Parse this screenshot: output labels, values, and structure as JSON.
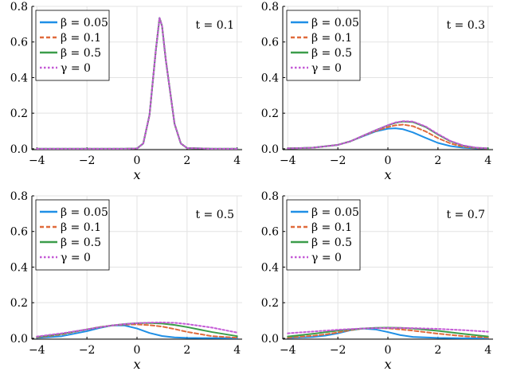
{
  "chart_data": [
    {
      "type": "line",
      "time_label": "t = 0.1",
      "xlabel": "x",
      "ylabel": "",
      "xlim": [
        -4.2,
        4.2
      ],
      "ylim": [
        -0.005,
        0.8
      ],
      "xticks": [
        -4,
        -2,
        0,
        2,
        4
      ],
      "yticks": [
        0.0,
        0.2,
        0.4,
        0.6,
        0.8
      ],
      "xtick_labels": [
        "−4",
        "−2",
        "0",
        "2",
        "4"
      ],
      "ytick_labels": [
        "0.0",
        "0.2",
        "0.4",
        "0.6",
        "0.8"
      ],
      "grid": true,
      "legend_placement": "top-left",
      "x": [
        -4,
        -3,
        -2,
        -1,
        -0.5,
        0,
        0.25,
        0.5,
        0.75,
        0.9,
        1.0,
        1.15,
        1.5,
        1.75,
        2,
        3,
        4
      ],
      "series": [
        {
          "name": "β = 0.05",
          "color": "#1f8fe6",
          "dash": "solid",
          "values": [
            0,
            0,
            0,
            0,
            0,
            0.002,
            0.03,
            0.19,
            0.55,
            0.735,
            0.69,
            0.5,
            0.14,
            0.03,
            0.004,
            0,
            0
          ]
        },
        {
          "name": "β = 0.1",
          "color": "#e06a3b",
          "dash": "dashed",
          "values": [
            0,
            0,
            0,
            0,
            0,
            0.002,
            0.03,
            0.19,
            0.55,
            0.735,
            0.69,
            0.5,
            0.14,
            0.03,
            0.004,
            0,
            0
          ]
        },
        {
          "name": "β = 0.5",
          "color": "#3b9d4a",
          "dash": "solid",
          "values": [
            0,
            0,
            0,
            0,
            0,
            0.002,
            0.03,
            0.19,
            0.55,
            0.735,
            0.69,
            0.5,
            0.14,
            0.03,
            0.004,
            0,
            0
          ]
        },
        {
          "name": "γ = 0",
          "color": "#c45ad6",
          "dash": "dotted",
          "values": [
            0,
            0,
            0,
            0,
            0,
            0.002,
            0.03,
            0.19,
            0.55,
            0.735,
            0.69,
            0.5,
            0.14,
            0.03,
            0.004,
            0,
            0
          ]
        }
      ]
    },
    {
      "type": "line",
      "time_label": "t = 0.3",
      "xlabel": "x",
      "ylabel": "",
      "xlim": [
        -4.2,
        4.2
      ],
      "ylim": [
        -0.005,
        0.8
      ],
      "xticks": [
        -4,
        -2,
        0,
        2,
        4
      ],
      "yticks": [
        0.0,
        0.2,
        0.4,
        0.6,
        0.8
      ],
      "xtick_labels": [
        "−4",
        "−2",
        "0",
        "2",
        "4"
      ],
      "ytick_labels": [
        "0.0",
        "0.2",
        "0.4",
        "0.6",
        "0.8"
      ],
      "grid": true,
      "legend_placement": "top-left",
      "x": [
        -4,
        -3,
        -2,
        -1.5,
        -1,
        -0.5,
        0,
        0.3,
        0.6,
        1,
        1.5,
        2,
        2.5,
        3,
        3.5,
        4
      ],
      "series": [
        {
          "name": "β = 0.05",
          "color": "#1f8fe6",
          "dash": "solid",
          "values": [
            0.002,
            0.006,
            0.022,
            0.042,
            0.07,
            0.097,
            0.113,
            0.115,
            0.11,
            0.092,
            0.062,
            0.033,
            0.015,
            0.006,
            0.002,
            0.001
          ]
        },
        {
          "name": "β = 0.1",
          "color": "#e06a3b",
          "dash": "dashed",
          "values": [
            0.002,
            0.006,
            0.022,
            0.042,
            0.072,
            0.1,
            0.122,
            0.132,
            0.136,
            0.127,
            0.098,
            0.06,
            0.03,
            0.012,
            0.004,
            0.001
          ]
        },
        {
          "name": "β = 0.5",
          "color": "#3b9d4a",
          "dash": "solid",
          "values": [
            0.002,
            0.006,
            0.022,
            0.042,
            0.073,
            0.104,
            0.132,
            0.146,
            0.153,
            0.15,
            0.123,
            0.08,
            0.042,
            0.018,
            0.006,
            0.002
          ]
        },
        {
          "name": "γ = 0",
          "color": "#c45ad6",
          "dash": "dotted",
          "values": [
            0.002,
            0.006,
            0.022,
            0.042,
            0.073,
            0.104,
            0.133,
            0.148,
            0.155,
            0.153,
            0.126,
            0.083,
            0.044,
            0.019,
            0.007,
            0.002
          ]
        }
      ]
    },
    {
      "type": "line",
      "time_label": "t = 0.5",
      "xlabel": "x",
      "ylabel": "",
      "xlim": [
        -4.2,
        4.2
      ],
      "ylim": [
        -0.005,
        0.8
      ],
      "xticks": [
        -4,
        -2,
        0,
        2,
        4
      ],
      "yticks": [
        0.0,
        0.2,
        0.4,
        0.6,
        0.8
      ],
      "xtick_labels": [
        "−4",
        "−2",
        "0",
        "2",
        "4"
      ],
      "ytick_labels": [
        "0.0",
        "0.2",
        "0.4",
        "0.6",
        "0.8"
      ],
      "grid": true,
      "legend_placement": "top-left",
      "x": [
        -4,
        -3,
        -2,
        -1.5,
        -1,
        -0.5,
        0,
        0.5,
        1,
        1.5,
        2,
        3,
        4
      ],
      "series": [
        {
          "name": "β = 0.05",
          "color": "#1f8fe6",
          "dash": "solid",
          "values": [
            0.002,
            0.012,
            0.04,
            0.058,
            0.072,
            0.072,
            0.055,
            0.03,
            0.013,
            0.005,
            0.002,
            0.001,
            0.0
          ]
        },
        {
          "name": "β = 0.1",
          "color": "#e06a3b",
          "dash": "dashed",
          "values": [
            0.005,
            0.022,
            0.05,
            0.063,
            0.072,
            0.077,
            0.078,
            0.074,
            0.066,
            0.052,
            0.036,
            0.012,
            0.003
          ]
        },
        {
          "name": "β = 0.5",
          "color": "#3b9d4a",
          "dash": "solid",
          "values": [
            0.008,
            0.025,
            0.05,
            0.062,
            0.072,
            0.08,
            0.085,
            0.086,
            0.083,
            0.075,
            0.063,
            0.035,
            0.012
          ]
        },
        {
          "name": "γ = 0",
          "color": "#c45ad6",
          "dash": "dotted",
          "values": [
            0.01,
            0.028,
            0.05,
            0.062,
            0.072,
            0.08,
            0.085,
            0.088,
            0.089,
            0.087,
            0.08,
            0.06,
            0.032
          ]
        }
      ]
    },
    {
      "type": "line",
      "time_label": "t = 0.7",
      "xlabel": "x",
      "ylabel": "",
      "xlim": [
        -4.2,
        4.2
      ],
      "ylim": [
        -0.005,
        0.8
      ],
      "xticks": [
        -4,
        -2,
        0,
        2,
        4
      ],
      "yticks": [
        0.0,
        0.2,
        0.4,
        0.6,
        0.8
      ],
      "xtick_labels": [
        "−4",
        "−2",
        "0",
        "2",
        "4"
      ],
      "ytick_labels": [
        "0.0",
        "0.2",
        "0.4",
        "0.6",
        "0.8"
      ],
      "grid": true,
      "legend_placement": "top-left",
      "x": [
        -4,
        -3,
        -2.5,
        -2,
        -1.5,
        -1,
        -0.5,
        0,
        0.5,
        1,
        2,
        3,
        4
      ],
      "series": [
        {
          "name": "β = 0.05",
          "color": "#1f8fe6",
          "dash": "solid",
          "values": [
            0.002,
            0.008,
            0.015,
            0.028,
            0.045,
            0.055,
            0.05,
            0.035,
            0.018,
            0.008,
            0.002,
            0.0,
            0.0
          ]
        },
        {
          "name": "β = 0.1",
          "color": "#e06a3b",
          "dash": "dashed",
          "values": [
            0.004,
            0.014,
            0.022,
            0.033,
            0.046,
            0.055,
            0.058,
            0.056,
            0.05,
            0.043,
            0.026,
            0.012,
            0.004
          ]
        },
        {
          "name": "β = 0.5",
          "color": "#3b9d4a",
          "dash": "solid",
          "values": [
            0.01,
            0.025,
            0.034,
            0.043,
            0.05,
            0.055,
            0.059,
            0.06,
            0.059,
            0.055,
            0.042,
            0.025,
            0.01
          ]
        },
        {
          "name": "γ = 0",
          "color": "#c45ad6",
          "dash": "dotted",
          "values": [
            0.028,
            0.038,
            0.043,
            0.048,
            0.052,
            0.055,
            0.057,
            0.058,
            0.058,
            0.057,
            0.053,
            0.046,
            0.037
          ]
        }
      ]
    }
  ]
}
